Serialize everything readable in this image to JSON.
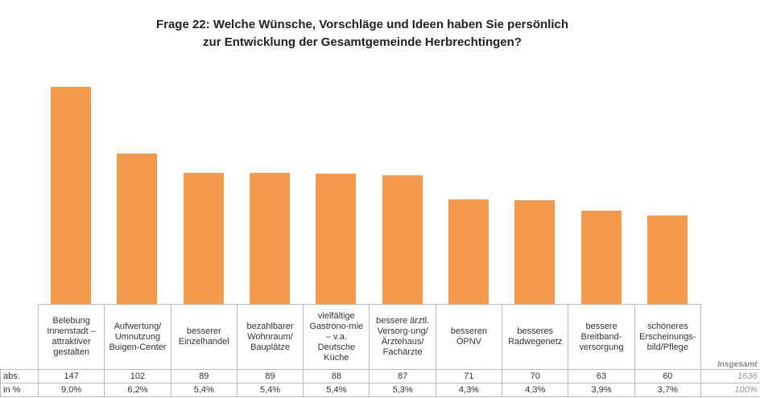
{
  "chart_data": {
    "type": "bar",
    "title": "Frage 22: Welche Wünsche, Vorschläge und Ideen haben Sie persönlich\nzur Entwicklung der Gesamtgemeinde Herbrechtingen?",
    "categories": [
      "Belebung\nInnenstadt –\nattraktiver\ngestalten",
      "Aufwertung/\nUmnutzung\nBuigen-Center",
      "besserer\nEinzelhandel",
      "bezahlbarer\nWohnraum/\nBauplätze",
      "vielfältige\nGastrono-mie\n– v.a.\nDeutsche\nKüche",
      "bessere ärztl.\nVersorg-ung/\nÄrztehaus/\nFachärzte",
      "besseren\nÖPNV",
      "besseres\nRadwegenetz",
      "bessere\nBreitband-\nversorgung",
      "schöneres\nErscheinungs-\nbild/Pflege"
    ],
    "series": [
      {
        "name": "abs.",
        "color": "#f39a4c",
        "values": [
          147,
          102,
          89,
          89,
          88,
          87,
          71,
          70,
          63,
          60
        ]
      }
    ],
    "percent": {
      "name": "in %",
      "values": [
        9.0,
        6.2,
        5.4,
        5.4,
        5.4,
        5.3,
        4.3,
        4.3,
        3.9,
        3.7
      ],
      "value_labels": [
        "9,0%",
        "6,2%",
        "5,4%",
        "5,4%",
        "5,4%",
        "5,3%",
        "4,3%",
        "4,3%",
        "3,9%",
        "3,7%"
      ]
    },
    "total_label": "Insgesamt",
    "total": 1636,
    "total_percent": 100,
    "total_percent_label": "100%"
  }
}
